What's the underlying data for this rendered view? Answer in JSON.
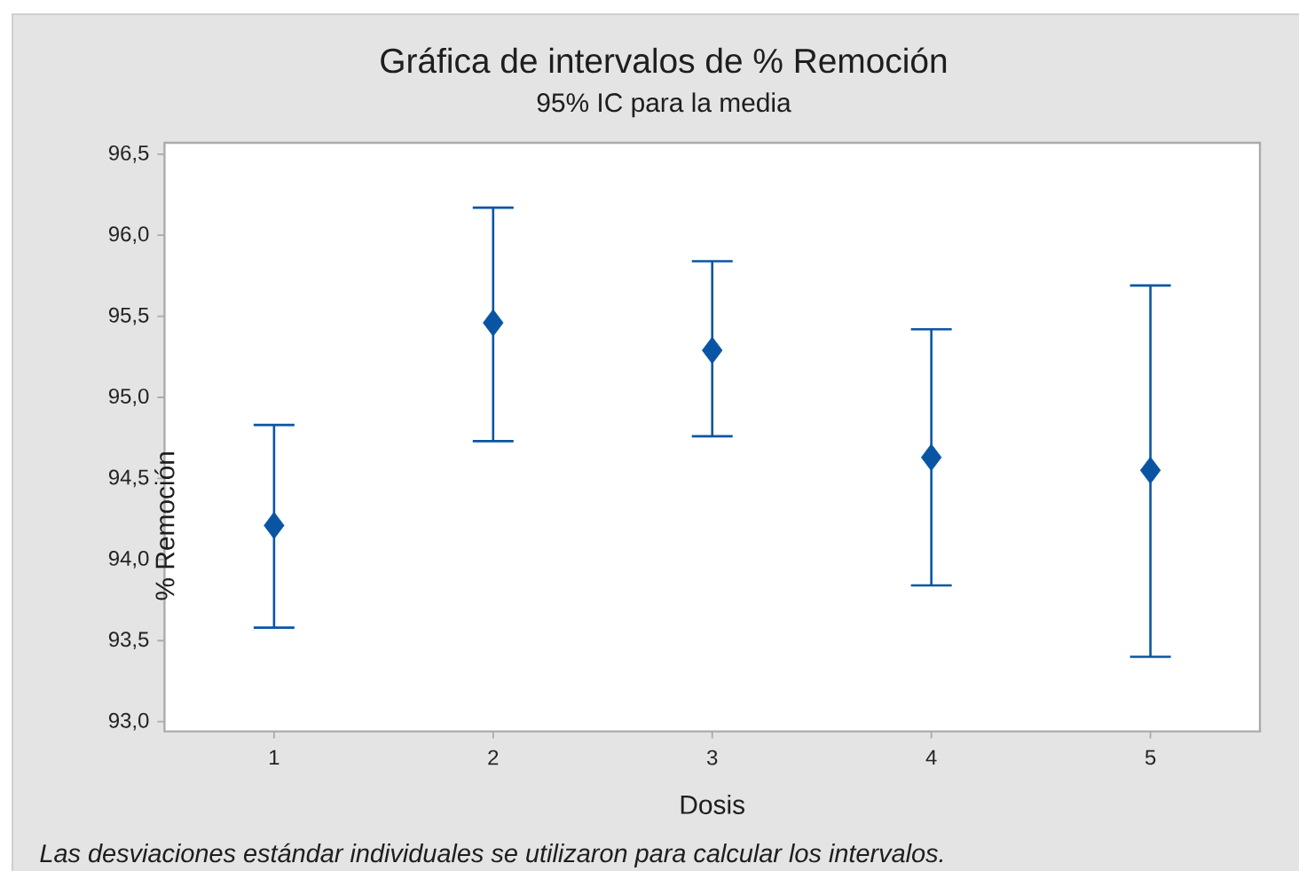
{
  "chart_data": {
    "type": "scatter",
    "title": "Gráfica de intervalos de % Remoción",
    "subtitle": "95% IC para la media",
    "xlabel": "Dosis",
    "ylabel": "% Remoción",
    "annotations": [
      "Las desviaciones estándar individuales se utilizaron para calcular los intervalos."
    ],
    "categories": [
      "1",
      "2",
      "3",
      "4",
      "5"
    ],
    "values": [
      94.21,
      95.46,
      95.29,
      94.63,
      94.55
    ],
    "errors": [
      [
        93.58,
        94.83
      ],
      [
        94.73,
        96.17
      ],
      [
        94.76,
        95.84
      ],
      [
        93.84,
        95.42
      ],
      [
        93.4,
        95.69
      ]
    ],
    "color": "#0a55a3",
    "marker": "diamond",
    "ylim": [
      92.94,
      96.57
    ],
    "yticks": [
      {
        "value": 93.0,
        "label": "93,0"
      },
      {
        "value": 93.5,
        "label": "93,5"
      },
      {
        "value": 94.0,
        "label": "94,0"
      },
      {
        "value": 94.5,
        "label": "94,5"
      },
      {
        "value": 95.0,
        "label": "95,0"
      },
      {
        "value": 95.5,
        "label": "95,5"
      },
      {
        "value": 96.0,
        "label": "96,0"
      },
      {
        "value": 96.5,
        "label": "96,5"
      }
    ]
  }
}
